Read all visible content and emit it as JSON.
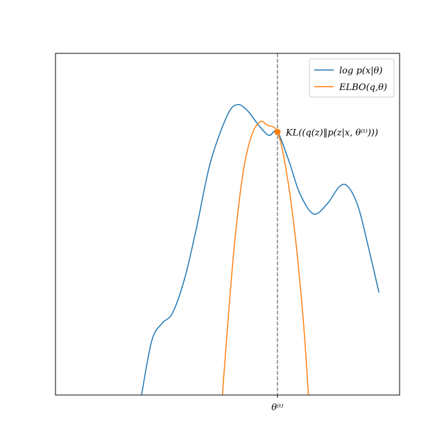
{
  "chart_data": {
    "type": "line",
    "title": "",
    "xlabel": "",
    "ylabel": "",
    "xlim": [
      0,
      10
    ],
    "ylim": [
      0,
      10
    ],
    "grid": false,
    "legend_position": "top-right",
    "x_ticks": [
      {
        "value": 6.45,
        "label": "θ⁽ᵗ⁾"
      }
    ],
    "y_ticks": [],
    "vline": {
      "x": 6.45,
      "style": "dashed",
      "color": "#808080"
    },
    "series": [
      {
        "name": "log p(x|θ)",
        "color": "#1f77b4",
        "points": [
          [
            2.5,
            0.0
          ],
          [
            2.8,
            1.6
          ],
          [
            3.1,
            2.1
          ],
          [
            3.4,
            2.4
          ],
          [
            3.75,
            3.4
          ],
          [
            4.1,
            4.9
          ],
          [
            4.5,
            6.8
          ],
          [
            5.0,
            8.2
          ],
          [
            5.3,
            8.5
          ],
          [
            5.6,
            8.3
          ],
          [
            5.9,
            7.9
          ],
          [
            6.2,
            7.6
          ],
          [
            6.45,
            7.7
          ],
          [
            6.8,
            6.8
          ],
          [
            7.1,
            5.9
          ],
          [
            7.5,
            5.3
          ],
          [
            7.9,
            5.6
          ],
          [
            8.25,
            6.1
          ],
          [
            8.5,
            6.1
          ],
          [
            8.8,
            5.5
          ],
          [
            9.1,
            4.3
          ],
          [
            9.4,
            3.0
          ]
        ]
      },
      {
        "name": "ELBO(q,θ)",
        "color": "#ff7f0e",
        "points": [
          [
            4.85,
            0.0
          ],
          [
            5.0,
            2.0
          ],
          [
            5.2,
            4.4
          ],
          [
            5.45,
            6.5
          ],
          [
            5.7,
            7.6
          ],
          [
            5.95,
            8.0
          ],
          [
            6.15,
            7.9
          ],
          [
            6.45,
            7.7
          ],
          [
            6.7,
            6.6
          ],
          [
            6.95,
            4.8
          ],
          [
            7.2,
            2.2
          ],
          [
            7.35,
            0.0
          ]
        ]
      }
    ],
    "annotations": [
      {
        "x": 6.45,
        "y": 7.7,
        "marker": "circle",
        "color": "#ff7f0e",
        "text": "KL((q(z)‖p(z|x, θ⁽ᵗ⁾)))"
      }
    ]
  }
}
